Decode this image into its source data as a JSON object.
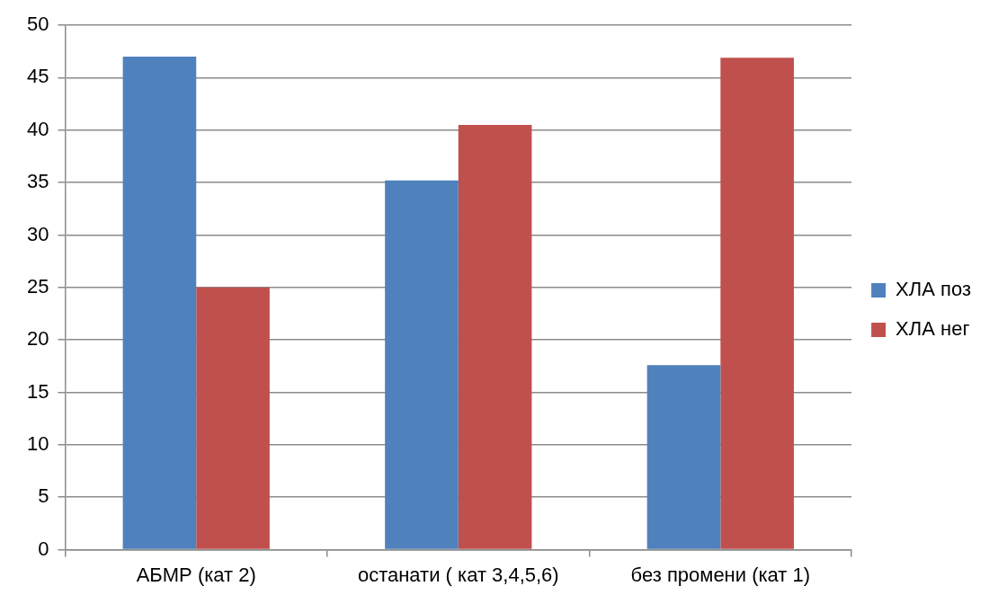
{
  "chart_data": {
    "type": "bar",
    "categories": [
      "АБМР (кат 2)",
      "останати ( кат 3,4,5,6)",
      "без промени (кат 1)"
    ],
    "series": [
      {
        "name": "ХЛА поз",
        "color": "#4f81bd",
        "values": [
          47,
          35.2,
          17.6
        ]
      },
      {
        "name": "ХЛА нег",
        "color": "#c0504d",
        "values": [
          25,
          40.5,
          46.9
        ]
      }
    ],
    "ylim": [
      0,
      50
    ],
    "yticks": [
      0,
      5,
      10,
      15,
      20,
      25,
      30,
      35,
      40,
      45,
      50
    ],
    "grid": "y",
    "legend": "right"
  }
}
